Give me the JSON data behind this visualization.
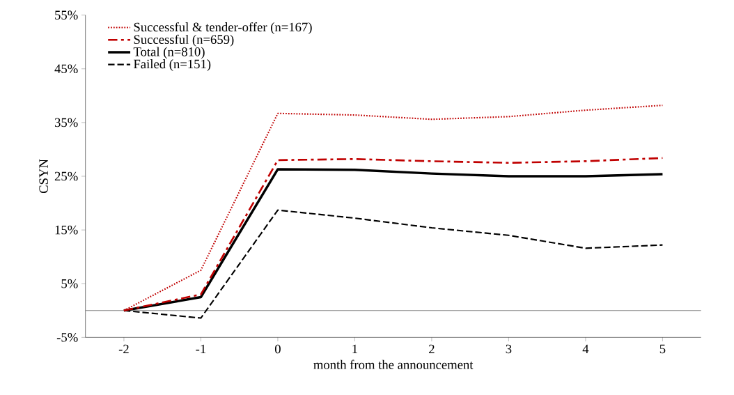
{
  "chart_data": {
    "type": "line",
    "xlabel": "month from the announcement",
    "ylabel": "CSYN",
    "x": [
      -2,
      -1,
      0,
      1,
      2,
      3,
      4,
      5
    ],
    "xlim": [
      -2.5,
      5.5
    ],
    "xticks": [
      -2,
      -1,
      0,
      1,
      2,
      3,
      4,
      5
    ],
    "ylim": [
      -5,
      55
    ],
    "yticks": [
      {
        "value": -5,
        "label": "-5%"
      },
      {
        "value": 5,
        "label": "5%"
      },
      {
        "value": 15,
        "label": "15%"
      },
      {
        "value": 25,
        "label": "25%"
      },
      {
        "value": 35,
        "label": "35%"
      },
      {
        "value": 45,
        "label": "45%"
      },
      {
        "value": 55,
        "label": "55%"
      }
    ],
    "legend": "top left",
    "grid": false,
    "marker": "none",
    "ref_lines": [
      {
        "axis": "y",
        "value": 0,
        "color": "#808080"
      }
    ],
    "series": [
      {
        "name": "Successful & tender-offer (n=167)",
        "color": "#c00000",
        "line_style": "dotted",
        "values": [
          0,
          7.5,
          36.7,
          36.4,
          35.6,
          36.1,
          37.3,
          38.2
        ]
      },
      {
        "name": "Successful (n=659)",
        "color": "#c00000",
        "line_style": "dashdot",
        "values": [
          0,
          3.0,
          28.0,
          28.2,
          27.8,
          27.5,
          27.8,
          28.4
        ]
      },
      {
        "name": "Total (n=810)",
        "color": "#000000",
        "line_style": "solid",
        "values": [
          0,
          2.5,
          26.3,
          26.2,
          25.5,
          25.0,
          25.0,
          25.4
        ]
      },
      {
        "name": "Failed (n=151)",
        "color": "#000000",
        "line_style": "dashed",
        "values": [
          0,
          -1.4,
          18.7,
          17.2,
          15.4,
          14.0,
          11.6,
          12.2
        ]
      }
    ]
  }
}
